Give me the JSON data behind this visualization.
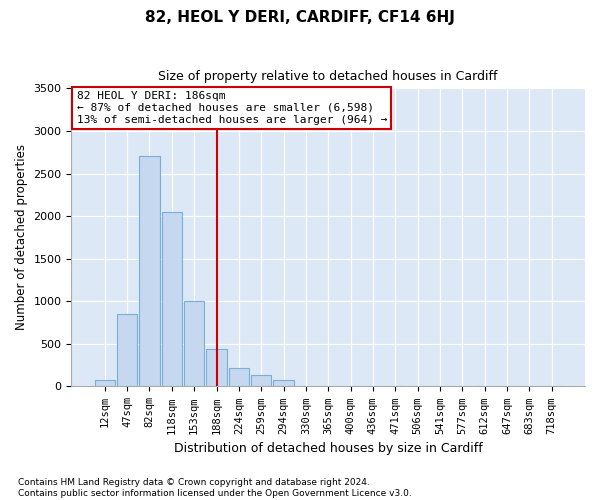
{
  "title": "82, HEOL Y DERI, CARDIFF, CF14 6HJ",
  "subtitle": "Size of property relative to detached houses in Cardiff",
  "xlabel": "Distribution of detached houses by size in Cardiff",
  "ylabel": "Number of detached properties",
  "categories": [
    "12sqm",
    "47sqm",
    "82sqm",
    "118sqm",
    "153sqm",
    "188sqm",
    "224sqm",
    "259sqm",
    "294sqm",
    "330sqm",
    "365sqm",
    "400sqm",
    "436sqm",
    "471sqm",
    "506sqm",
    "541sqm",
    "577sqm",
    "612sqm",
    "647sqm",
    "683sqm",
    "718sqm"
  ],
  "values": [
    75,
    850,
    2700,
    2050,
    1000,
    440,
    215,
    140,
    75,
    0,
    0,
    0,
    0,
    0,
    0,
    0,
    0,
    0,
    0,
    0,
    0
  ],
  "bar_color": "#c5d8ef",
  "bar_edge_color": "#7aafd4",
  "vline_x": 5,
  "vline_color": "#cc0000",
  "annotation_text": "82 HEOL Y DERI: 186sqm\n← 87% of detached houses are smaller (6,598)\n13% of semi-detached houses are larger (964) →",
  "annotation_box_color": "#ffffff",
  "annotation_box_edge_color": "#cc0000",
  "ylim": [
    0,
    3500
  ],
  "yticks": [
    0,
    500,
    1000,
    1500,
    2000,
    2500,
    3000,
    3500
  ],
  "footer_line1": "Contains HM Land Registry data © Crown copyright and database right 2024.",
  "footer_line2": "Contains public sector information licensed under the Open Government Licence v3.0.",
  "bg_color": "#ffffff",
  "plot_bg_color": "#dce8f5"
}
